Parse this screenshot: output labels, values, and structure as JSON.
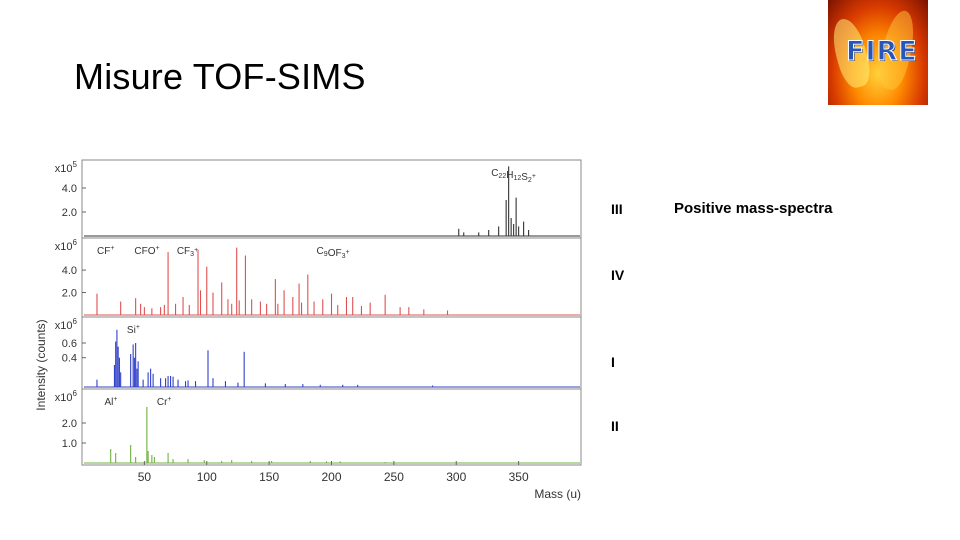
{
  "slide": {
    "title": "Misure TOF-SIMS",
    "logo_text": "FIRE",
    "side_label": "Positive mass-spectra"
  },
  "panel_labels": [
    "III",
    "IV",
    "I",
    "II"
  ],
  "chart_data": {
    "type": "line",
    "xlabel": "Mass (u)",
    "ylabel": "Intensity (counts)",
    "xlim": [
      0,
      400
    ],
    "x_ticks": [
      50,
      100,
      150,
      200,
      250,
      300,
      350
    ],
    "grid": false,
    "panels": [
      {
        "label": "III",
        "scale_prefix": "x10",
        "scale_exponent": "5",
        "color": "#333333",
        "ylim": [
          0,
          6.0
        ],
        "y_ticks": [
          {
            "value": 2.0,
            "label": "2.0"
          },
          {
            "value": 4.0,
            "label": "4.0"
          }
        ],
        "annotations": [
          {
            "text": "C22H12S2+",
            "x": 320
          }
        ],
        "peaks": [
          [
            302,
            0.6
          ],
          [
            306,
            0.3
          ],
          [
            318,
            0.3
          ],
          [
            326,
            0.5
          ],
          [
            334,
            0.8
          ],
          [
            340,
            3.0
          ],
          [
            342,
            5.8
          ],
          [
            344,
            1.5
          ],
          [
            346,
            1.0
          ],
          [
            348,
            3.2
          ],
          [
            350,
            0.8
          ],
          [
            354,
            1.2
          ],
          [
            358,
            0.5
          ]
        ]
      },
      {
        "label": "IV",
        "scale_prefix": "x10",
        "scale_exponent": "6",
        "color": "#e05050",
        "ylim": [
          0,
          6.5
        ],
        "y_ticks": [
          {
            "value": 2.0,
            "label": "2.0"
          },
          {
            "value": 4.0,
            "label": "4.0"
          }
        ],
        "annotations": [
          {
            "text": "CF+",
            "x": 4
          },
          {
            "text": "CFO+",
            "x": 34
          },
          {
            "text": "CF3+",
            "x": 68
          },
          {
            "text": "C9OF3+",
            "x": 180
          }
        ],
        "peaks": [
          [
            12,
            1.9
          ],
          [
            31,
            1.2
          ],
          [
            43,
            1.5
          ],
          [
            47,
            1.0
          ],
          [
            50,
            0.7
          ],
          [
            56,
            0.6
          ],
          [
            63,
            0.7
          ],
          [
            66,
            0.9
          ],
          [
            69,
            5.6
          ],
          [
            75,
            1.0
          ],
          [
            81,
            1.6
          ],
          [
            86,
            0.9
          ],
          [
            93,
            5.8
          ],
          [
            95,
            2.2
          ],
          [
            100,
            4.3
          ],
          [
            105,
            2.0
          ],
          [
            112,
            2.9
          ],
          [
            117,
            1.4
          ],
          [
            120,
            1.0
          ],
          [
            124,
            6.0
          ],
          [
            126,
            1.3
          ],
          [
            131,
            5.3
          ],
          [
            136,
            1.4
          ],
          [
            143,
            1.2
          ],
          [
            148,
            1.0
          ],
          [
            155,
            3.2
          ],
          [
            157,
            1.0
          ],
          [
            162,
            2.2
          ],
          [
            169,
            1.6
          ],
          [
            174,
            2.8
          ],
          [
            176,
            1.1
          ],
          [
            181,
            3.6
          ],
          [
            186,
            1.2
          ],
          [
            193,
            1.4
          ],
          [
            200,
            1.9
          ],
          [
            205,
            0.9
          ],
          [
            212,
            1.6
          ],
          [
            217,
            1.6
          ],
          [
            224,
            0.8
          ],
          [
            231,
            1.1
          ],
          [
            243,
            1.8
          ],
          [
            255,
            0.7
          ],
          [
            262,
            0.7
          ],
          [
            274,
            0.5
          ],
          [
            293,
            0.4
          ]
        ]
      },
      {
        "label": "I",
        "scale_prefix": "x10",
        "scale_exponent": "6",
        "color": "#3040c8",
        "ylim": [
          0,
          0.9
        ],
        "y_ticks": [
          {
            "value": 0.4,
            "label": "0.4"
          },
          {
            "value": 0.6,
            "label": "0.6"
          }
        ],
        "annotations": [
          {
            "text": "Si+",
            "x": 28
          }
        ],
        "peaks": [
          [
            12,
            0.1
          ],
          [
            26,
            0.3
          ],
          [
            27,
            0.62
          ],
          [
            28,
            0.78
          ],
          [
            29,
            0.55
          ],
          [
            30,
            0.4
          ],
          [
            31,
            0.2
          ],
          [
            39,
            0.45
          ],
          [
            41,
            0.58
          ],
          [
            42,
            0.4
          ],
          [
            43,
            0.6
          ],
          [
            44,
            0.25
          ],
          [
            45,
            0.35
          ],
          [
            49,
            0.1
          ],
          [
            53,
            0.2
          ],
          [
            55,
            0.25
          ],
          [
            57,
            0.18
          ],
          [
            63,
            0.12
          ],
          [
            67,
            0.12
          ],
          [
            69,
            0.15
          ],
          [
            71,
            0.15
          ],
          [
            73,
            0.14
          ],
          [
            77,
            0.1
          ],
          [
            83,
            0.08
          ],
          [
            85,
            0.09
          ],
          [
            91,
            0.08
          ],
          [
            101,
            0.5
          ],
          [
            105,
            0.12
          ],
          [
            115,
            0.08
          ],
          [
            125,
            0.06
          ],
          [
            130,
            0.48
          ],
          [
            147,
            0.05
          ],
          [
            163,
            0.04
          ],
          [
            177,
            0.04
          ],
          [
            191,
            0.03
          ],
          [
            209,
            0.03
          ],
          [
            221,
            0.03
          ],
          [
            281,
            0.02
          ]
        ]
      },
      {
        "label": "II",
        "scale_prefix": "x10",
        "scale_exponent": "6",
        "color": "#70b040",
        "ylim": [
          0,
          3.5
        ],
        "y_ticks": [
          {
            "value": 1.0,
            "label": "1.0"
          },
          {
            "value": 2.0,
            "label": "2.0"
          }
        ],
        "annotations": [
          {
            "text": "Al+",
            "x": 10
          },
          {
            "text": "Cr+",
            "x": 52
          }
        ],
        "peaks": [
          [
            23,
            0.7
          ],
          [
            27,
            0.5
          ],
          [
            39,
            0.9
          ],
          [
            43,
            0.3
          ],
          [
            52,
            2.8
          ],
          [
            53,
            0.6
          ],
          [
            56,
            0.4
          ],
          [
            58,
            0.3
          ],
          [
            69,
            0.5
          ],
          [
            73,
            0.2
          ],
          [
            85,
            0.2
          ],
          [
            98,
            0.15
          ],
          [
            112,
            0.1
          ],
          [
            120,
            0.15
          ],
          [
            136,
            0.1
          ],
          [
            152,
            0.1
          ],
          [
            183,
            0.1
          ],
          [
            196,
            0.08
          ],
          [
            207,
            0.08
          ],
          [
            243,
            0.05
          ]
        ]
      }
    ]
  }
}
